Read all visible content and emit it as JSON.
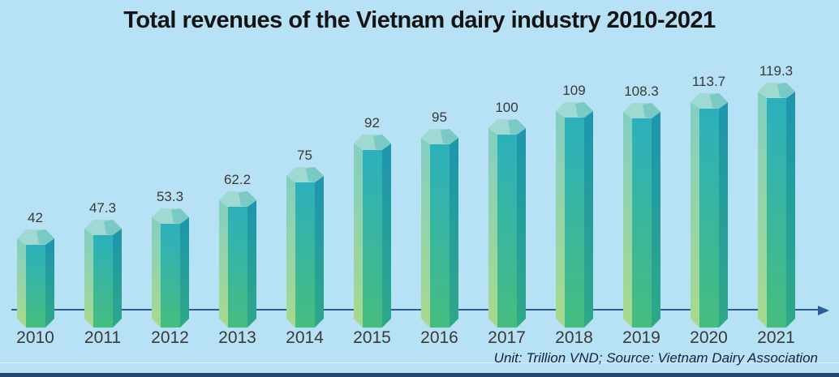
{
  "app": {
    "background_color": "#b7e1f4",
    "footer_bar_color": "#264672"
  },
  "chart_data": {
    "type": "bar",
    "title": "Total revenues of the Vietnam dairy industry 2010-2021",
    "categories": [
      "2010",
      "2011",
      "2012",
      "2013",
      "2014",
      "2015",
      "2016",
      "2017",
      "2018",
      "2019",
      "2020",
      "2021"
    ],
    "values": [
      42,
      47.3,
      53.3,
      62.2,
      75,
      92,
      95,
      100,
      109,
      108.3,
      113.7,
      119.3
    ],
    "footnote": "Unit: Trillion VND; Source: Vietnam Dairy Association",
    "unit": "Trillion VND",
    "source": "Vietnam Dairy Association",
    "xlabel": "",
    "ylabel": "",
    "grid": false,
    "legend_position": "none",
    "axis_arrow": true,
    "data_labels": true,
    "axis_color": "#2b5f94",
    "label_color": "#3a3a3a",
    "bar_colors": {
      "cap": "#a0d9d2",
      "cap_shade": "#79c9c4",
      "left_top": "#82cfc2",
      "left_bottom": "#a9d98c",
      "main_top": "#2db0bd",
      "main_bottom": "#46bd7f",
      "right_top": "#1e95ad",
      "right_bottom": "#2ea887"
    }
  }
}
